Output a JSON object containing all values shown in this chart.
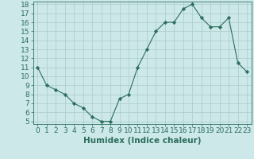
{
  "xlabel": "Humidex (Indice chaleur)",
  "x": [
    0,
    1,
    2,
    3,
    4,
    5,
    6,
    7,
    8,
    9,
    10,
    11,
    12,
    13,
    14,
    15,
    16,
    17,
    18,
    19,
    20,
    21,
    22,
    23
  ],
  "y_data": [
    11,
    9,
    8.5,
    8,
    7,
    6.5,
    5.5,
    5,
    5,
    7.5,
    8,
    11,
    13,
    15,
    16,
    16,
    17.5,
    18,
    16.5,
    15.5,
    15.5,
    16.5,
    11.5,
    10.5
  ],
  "ylim": [
    4.7,
    18.3
  ],
  "xlim": [
    -0.5,
    23.5
  ],
  "yticks": [
    5,
    6,
    7,
    8,
    9,
    10,
    11,
    12,
    13,
    14,
    15,
    16,
    17,
    18
  ],
  "xticks": [
    0,
    1,
    2,
    3,
    4,
    5,
    6,
    7,
    8,
    9,
    10,
    11,
    12,
    13,
    14,
    15,
    16,
    17,
    18,
    19,
    20,
    21,
    22,
    23
  ],
  "line_color": "#2d6e5e",
  "marker": "D",
  "marker_size": 2.2,
  "bg_color": "#cce8e8",
  "grid_color": "#b0d0d0",
  "tick_label_color": "#2d6e5e",
  "xlabel_color": "#2d6e5e",
  "xlabel_fontsize": 7.5,
  "tick_fontsize": 6.5
}
